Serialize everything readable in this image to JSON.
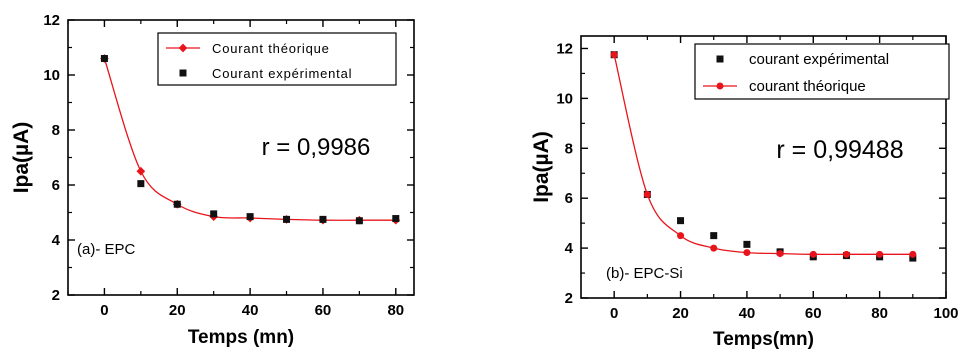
{
  "chart_data": [
    {
      "type": "scatter",
      "panel_label": "(a)- EPC",
      "annotation": "r = 0,9986",
      "xlabel": "Temps (mn)",
      "ylabel": "Ipa(µA)",
      "xlim": [
        -10,
        85
      ],
      "ylim": [
        2,
        12
      ],
      "xticks": [
        0,
        20,
        40,
        60,
        80
      ],
      "yticks": [
        2,
        4,
        6,
        8,
        10,
        12
      ],
      "minor_xticks": [
        -10,
        10,
        30,
        50,
        70
      ],
      "minor_yticks": [
        3,
        5,
        7,
        9,
        11
      ],
      "grid": false,
      "legend_position": "top-right",
      "series": [
        {
          "name": "Courant théorique",
          "marker": "diamond",
          "color": "#e8141c",
          "line": true,
          "x": [
            0,
            10,
            20,
            30,
            40,
            50,
            60,
            70,
            80
          ],
          "y": [
            10.6,
            6.5,
            5.3,
            4.85,
            4.8,
            4.75,
            4.72,
            4.72,
            4.72
          ]
        },
        {
          "name": "Courant expérimental",
          "marker": "square",
          "color": "#111111",
          "line": false,
          "x": [
            0,
            10,
            20,
            30,
            40,
            50,
            60,
            70,
            80
          ],
          "y": [
            10.6,
            6.05,
            5.3,
            4.95,
            4.85,
            4.75,
            4.75,
            4.7,
            4.78
          ]
        }
      ]
    },
    {
      "type": "scatter",
      "panel_label": "(b)- EPC-Si",
      "annotation": "r = 0,99488",
      "xlabel": "Temps(mn)",
      "ylabel": "Ipa(µA)",
      "xlim": [
        -10,
        100
      ],
      "ylim": [
        2,
        12.5
      ],
      "xticks": [
        0,
        20,
        40,
        60,
        80,
        100
      ],
      "yticks": [
        2,
        4,
        6,
        8,
        10,
        12
      ],
      "minor_xticks": [
        10,
        30,
        50,
        70,
        90
      ],
      "minor_yticks": [
        3,
        5,
        7,
        9,
        11
      ],
      "grid": false,
      "legend_position": "top-right",
      "series": [
        {
          "name": "courant expérimental",
          "marker": "square",
          "color": "#111111",
          "line": false,
          "x": [
            0,
            10,
            20,
            30,
            40,
            50,
            60,
            70,
            80,
            90
          ],
          "y": [
            11.75,
            6.15,
            5.1,
            4.5,
            4.15,
            3.85,
            3.65,
            3.7,
            3.65,
            3.6
          ]
        },
        {
          "name": "courant théorique",
          "marker": "circle",
          "color": "#e8141c",
          "line": true,
          "x": [
            0,
            10,
            20,
            30,
            40,
            50,
            60,
            70,
            80,
            90
          ],
          "y": [
            11.75,
            6.15,
            4.5,
            4.0,
            3.82,
            3.78,
            3.75,
            3.75,
            3.75,
            3.75
          ]
        }
      ]
    }
  ]
}
